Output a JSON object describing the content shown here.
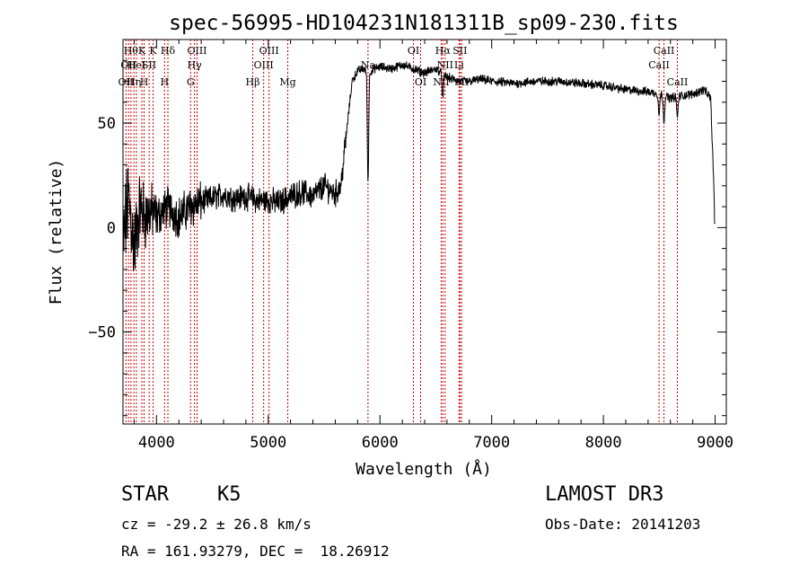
{
  "chart_data": {
    "type": "line",
    "title": "spec-56995-HD104231N181311B_sp09-230.fits",
    "xlabel": "Wavelength (Å)",
    "ylabel": "Flux (relative)",
    "xlim": [
      3700,
      9100
    ],
    "ylim": [
      -94,
      90
    ],
    "xticks": [
      4000,
      5000,
      6000,
      7000,
      8000,
      9000
    ],
    "yticks": [
      -50,
      0,
      50
    ],
    "spectrum_profile": [
      [
        3700,
        -10
      ],
      [
        3750,
        15
      ],
      [
        3800,
        -10
      ],
      [
        3850,
        10
      ],
      [
        3900,
        5
      ],
      [
        3950,
        8
      ],
      [
        4000,
        5
      ],
      [
        4100,
        10
      ],
      [
        4200,
        5
      ],
      [
        4300,
        10
      ],
      [
        4400,
        12
      ],
      [
        4500,
        14
      ],
      [
        4600,
        16
      ],
      [
        4700,
        14
      ],
      [
        4800,
        15
      ],
      [
        4900,
        13
      ],
      [
        5000,
        13
      ],
      [
        5100,
        12
      ],
      [
        5200,
        15
      ],
      [
        5300,
        17
      ],
      [
        5400,
        15
      ],
      [
        5500,
        20
      ],
      [
        5600,
        16
      ],
      [
        5650,
        20
      ],
      [
        5700,
        45
      ],
      [
        5750,
        70
      ],
      [
        5800,
        75
      ],
      [
        5850,
        76
      ],
      [
        5900,
        74
      ],
      [
        5950,
        76
      ],
      [
        6000,
        77
      ],
      [
        6100,
        76
      ],
      [
        6200,
        78
      ],
      [
        6300,
        76
      ],
      [
        6400,
        74
      ],
      [
        6500,
        76
      ],
      [
        6600,
        72
      ],
      [
        6700,
        70
      ],
      [
        6800,
        70
      ],
      [
        6900,
        71
      ],
      [
        7000,
        70
      ],
      [
        7200,
        69
      ],
      [
        7400,
        70
      ],
      [
        7600,
        70
      ],
      [
        7800,
        69
      ],
      [
        8000,
        68
      ],
      [
        8200,
        66
      ],
      [
        8400,
        65
      ],
      [
        8500,
        64
      ],
      [
        8600,
        62
      ],
      [
        8700,
        63
      ],
      [
        8800,
        64
      ],
      [
        8900,
        66
      ],
      [
        8960,
        62
      ],
      [
        9000,
        2
      ]
    ],
    "absorption_features": [
      {
        "x": 5893,
        "depth": 52
      },
      {
        "x": 6563,
        "depth": 12
      },
      {
        "x": 8498,
        "depth": 10
      },
      {
        "x": 8542,
        "depth": 12
      },
      {
        "x": 8662,
        "depth": 10
      }
    ],
    "line_markers": [
      {
        "x": 3727,
        "label": "OII",
        "row": 2
      },
      {
        "x": 3750,
        "label": "OII",
        "row": 1
      },
      {
        "x": 3771,
        "label": "Hθ",
        "row": 0
      },
      {
        "x": 3798,
        "label": "Hη",
        "row": 2
      },
      {
        "x": 3820,
        "label": "HeI",
        "row": 1
      },
      {
        "x": 3869,
        "label": "K",
        "row": 0
      },
      {
        "x": 3889,
        "label": "H",
        "row": 2
      },
      {
        "x": 3934,
        "label": "SII",
        "row": 1
      },
      {
        "x": 3969,
        "label": "K",
        "row": 0
      },
      {
        "x": 4072,
        "label": "H",
        "row": 2
      },
      {
        "x": 4102,
        "label": "Hδ",
        "row": 0
      },
      {
        "x": 4305,
        "label": "G",
        "row": 2
      },
      {
        "x": 4340,
        "label": "Hγ",
        "row": 1
      },
      {
        "x": 4363,
        "label": "OIII",
        "row": 0
      },
      {
        "x": 4861,
        "label": "Hβ",
        "row": 2
      },
      {
        "x": 4959,
        "label": "OIII",
        "row": 1
      },
      {
        "x": 5007,
        "label": "OIII",
        "row": 0
      },
      {
        "x": 5175,
        "label": "Mg",
        "row": 2
      },
      {
        "x": 5893,
        "label": "Na",
        "row": 1
      },
      {
        "x": 6300,
        "label": "OI",
        "row": 0
      },
      {
        "x": 6364,
        "label": "OI",
        "row": 2
      },
      {
        "x": 6548,
        "label": "NII",
        "row": 2
      },
      {
        "x": 6563,
        "label": "Hα",
        "row": 0
      },
      {
        "x": 6583,
        "label": "NII",
        "row": 1
      },
      {
        "x": 6708,
        "label": "Li",
        "row": 1
      },
      {
        "x": 6716,
        "label": "SII",
        "row": 0
      },
      {
        "x": 6731,
        "label": "SII",
        "row": 2
      },
      {
        "x": 8498,
        "label": "CaII",
        "row": 1
      },
      {
        "x": 8542,
        "label": "CaII",
        "row": 0
      },
      {
        "x": 8662,
        "label": "CaII",
        "row": 2
      }
    ],
    "colors": {
      "marker": "#cc0000",
      "line": "#000000",
      "axis": "#000000"
    }
  },
  "info": {
    "object_type": "STAR",
    "subclass": "K5",
    "survey": "LAMOST DR3",
    "cz": "cz = -29.2 ± 26.8 km/s",
    "obs_date": "Obs-Date: 20141203",
    "coords": "RA = 161.93279, DEC =  18.26912"
  }
}
